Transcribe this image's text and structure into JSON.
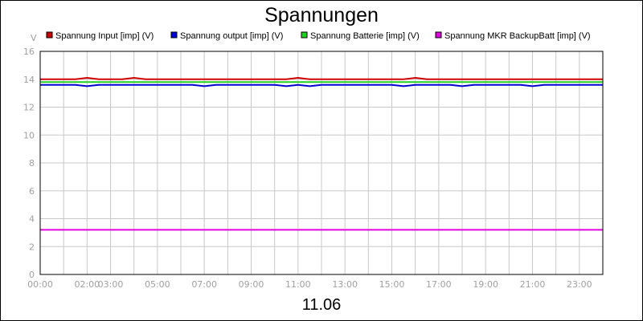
{
  "chart_data": {
    "type": "line",
    "title": "Spannungen",
    "ylabel": "V",
    "xlabel": "11.06",
    "ylim": [
      0,
      16
    ],
    "xlim": [
      0,
      24
    ],
    "yticks": [
      0,
      2,
      4,
      6,
      8,
      10,
      12,
      14,
      16
    ],
    "xticks": [
      {
        "value": 0,
        "label": "00:00"
      },
      {
        "value": 2,
        "label": "02:00"
      },
      {
        "value": 3,
        "label": "03:00"
      },
      {
        "value": 5,
        "label": "05:00"
      },
      {
        "value": 7,
        "label": "07:00"
      },
      {
        "value": 9,
        "label": "09:00"
      },
      {
        "value": 11,
        "label": "11:00"
      },
      {
        "value": 13,
        "label": "13:00"
      },
      {
        "value": 15,
        "label": "15:00"
      },
      {
        "value": 17,
        "label": "17:00"
      },
      {
        "value": 19,
        "label": "19:00"
      },
      {
        "value": 21,
        "label": "21:00"
      },
      {
        "value": 23,
        "label": "23:00"
      }
    ],
    "grid": true,
    "legend_position": "top",
    "x": [
      0,
      0.5,
      1,
      1.5,
      2,
      2.5,
      3,
      3.5,
      4,
      4.5,
      5,
      5.5,
      6,
      6.5,
      7,
      7.5,
      8,
      8.5,
      9,
      9.5,
      10,
      10.5,
      11,
      11.5,
      12,
      12.5,
      13,
      13.5,
      14,
      14.5,
      15,
      15.5,
      16,
      16.5,
      17,
      17.5,
      18,
      18.5,
      19,
      19.5,
      20,
      20.5,
      21,
      21.5,
      22,
      22.5,
      23,
      23.5,
      24
    ],
    "series": [
      {
        "name": "Spannung Input [imp] (V)",
        "color": "#d00000",
        "values": [
          14.0,
          14.0,
          14.0,
          14.0,
          14.1,
          14.0,
          14.0,
          14.0,
          14.1,
          14.0,
          14.0,
          14.0,
          14.0,
          14.0,
          14.0,
          14.0,
          14.0,
          14.0,
          14.0,
          14.0,
          14.0,
          14.0,
          14.1,
          14.0,
          14.0,
          14.0,
          14.0,
          14.0,
          14.0,
          14.0,
          14.0,
          14.0,
          14.1,
          14.0,
          14.0,
          14.0,
          14.0,
          14.0,
          14.0,
          14.0,
          14.0,
          14.0,
          14.0,
          14.0,
          14.0,
          14.0,
          14.0,
          14.0,
          14.0
        ]
      },
      {
        "name": "Spannung output [imp] (V)",
        "color": "#0000d0",
        "values": [
          13.6,
          13.6,
          13.6,
          13.6,
          13.5,
          13.6,
          13.6,
          13.6,
          13.6,
          13.6,
          13.6,
          13.6,
          13.6,
          13.6,
          13.5,
          13.6,
          13.6,
          13.6,
          13.6,
          13.6,
          13.6,
          13.5,
          13.6,
          13.5,
          13.6,
          13.6,
          13.6,
          13.6,
          13.6,
          13.6,
          13.6,
          13.5,
          13.6,
          13.6,
          13.6,
          13.6,
          13.5,
          13.6,
          13.6,
          13.6,
          13.6,
          13.6,
          13.5,
          13.6,
          13.6,
          13.6,
          13.6,
          13.6,
          13.6
        ]
      },
      {
        "name": "Spannung Batterie [imp] (V)",
        "color": "#20d020",
        "values": [
          13.8,
          13.8,
          13.8,
          13.8,
          13.8,
          13.8,
          13.8,
          13.8,
          13.8,
          13.8,
          13.8,
          13.8,
          13.8,
          13.8,
          13.8,
          13.8,
          13.8,
          13.8,
          13.8,
          13.8,
          13.8,
          13.8,
          13.8,
          13.8,
          13.8,
          13.8,
          13.8,
          13.8,
          13.8,
          13.8,
          13.8,
          13.8,
          13.8,
          13.8,
          13.8,
          13.8,
          13.8,
          13.8,
          13.8,
          13.8,
          13.8,
          13.8,
          13.8,
          13.8,
          13.8,
          13.8,
          13.8,
          13.8,
          13.8
        ]
      },
      {
        "name": "Spannung MKR BackupBatt [imp] (V)",
        "color": "#e000e0",
        "values": [
          3.2,
          3.2,
          3.2,
          3.2,
          3.2,
          3.2,
          3.2,
          3.2,
          3.2,
          3.2,
          3.2,
          3.2,
          3.2,
          3.2,
          3.2,
          3.2,
          3.2,
          3.2,
          3.2,
          3.2,
          3.2,
          3.2,
          3.2,
          3.2,
          3.2,
          3.2,
          3.2,
          3.2,
          3.2,
          3.2,
          3.2,
          3.2,
          3.2,
          3.2,
          3.2,
          3.2,
          3.2,
          3.2,
          3.2,
          3.2,
          3.2,
          3.2,
          3.2,
          3.2,
          3.2,
          3.2,
          3.2,
          3.2,
          3.2
        ]
      }
    ]
  }
}
